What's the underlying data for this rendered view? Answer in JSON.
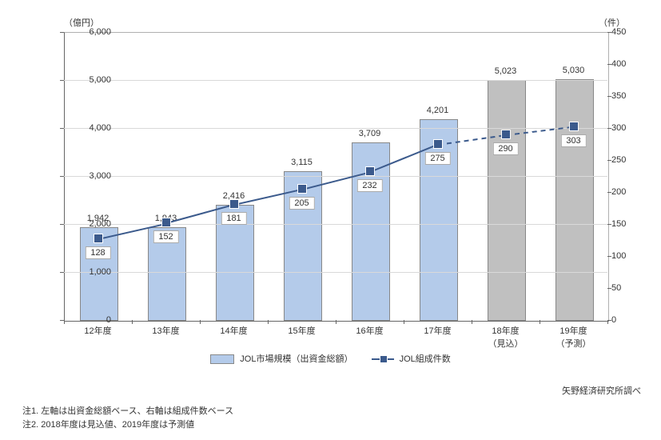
{
  "chart": {
    "type": "bar+line",
    "y_left_unit": "（億円）",
    "y_right_unit": "（件）",
    "y_left": {
      "min": 0,
      "max": 6000,
      "step": 1000
    },
    "y_right": {
      "min": 0,
      "max": 450,
      "step": 50
    },
    "grid_color": "#d9d9d9",
    "background_color": "#ffffff",
    "bar_color_actual": "#b4cbea",
    "bar_color_forecast": "#c0c0c0",
    "bar_border_color": "#888888",
    "line_color": "#3b5a8c",
    "marker_color": "#3b5a8c",
    "label_fontsize": 11,
    "categories": [
      {
        "label": "12年度",
        "bar": 1942,
        "line": 128,
        "forecast": false,
        "line_dashed_to_next": false
      },
      {
        "label": "13年度",
        "bar": 1943,
        "line": 152,
        "forecast": false,
        "line_dashed_to_next": false
      },
      {
        "label": "14年度",
        "bar": 2416,
        "line": 181,
        "forecast": false,
        "line_dashed_to_next": false
      },
      {
        "label": "15年度",
        "bar": 3115,
        "line": 205,
        "forecast": false,
        "line_dashed_to_next": false
      },
      {
        "label": "16年度",
        "bar": 3709,
        "line": 232,
        "forecast": false,
        "line_dashed_to_next": false
      },
      {
        "label": "17年度",
        "bar": 4201,
        "line": 275,
        "forecast": false,
        "line_dashed_to_next": true
      },
      {
        "label": "18年度\n（見込）",
        "bar": 5023,
        "line": 290,
        "forecast": true,
        "line_dashed_to_next": true
      },
      {
        "label": "19年度\n（予測）",
        "bar": 5030,
        "line": 303,
        "forecast": true,
        "line_dashed_to_next": false
      }
    ],
    "legend_bar": "JOL市場規模（出資金総額）",
    "legend_line": "JOL組成件数"
  },
  "source": "矢野経済研究所調べ",
  "note1": "注1. 左軸は出資金総額ベース、右軸は組成件数ベース",
  "note2": "注2. 2018年度は見込値、2019年度は予測値"
}
